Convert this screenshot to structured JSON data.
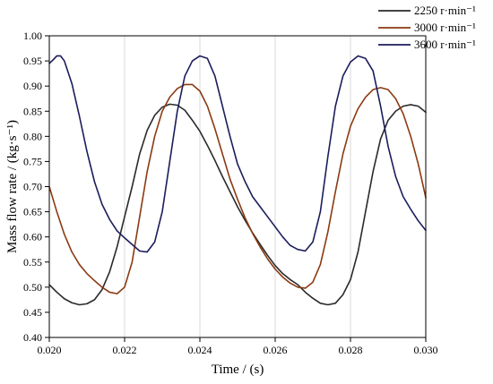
{
  "chart_data": {
    "type": "line",
    "title": "",
    "xlabel": "Time / (s)",
    "ylabel": "Mass flow rate / (kg·s⁻¹)",
    "xlim": [
      0.02,
      0.03
    ],
    "ylim": [
      0.4,
      1.0
    ],
    "xticks": [
      "0.020",
      "0.022",
      "0.024",
      "0.026",
      "0.028",
      "0.030"
    ],
    "yticks": [
      "0.40",
      "0.45",
      "0.50",
      "0.55",
      "0.60",
      "0.65",
      "0.70",
      "0.75",
      "0.80",
      "0.85",
      "0.90",
      "0.95",
      "1.00"
    ],
    "grid": "vertical lines at x ticks",
    "legend_position": "top-right, outside plot",
    "series": [
      {
        "name": "2250 r·min⁻¹",
        "color": "#2a2a2a",
        "points": [
          [
            0.02,
            0.505
          ],
          [
            0.0202,
            0.49
          ],
          [
            0.0204,
            0.477
          ],
          [
            0.0206,
            0.469
          ],
          [
            0.0208,
            0.465
          ],
          [
            0.021,
            0.467
          ],
          [
            0.0212,
            0.475
          ],
          [
            0.0214,
            0.495
          ],
          [
            0.0216,
            0.53
          ],
          [
            0.0218,
            0.58
          ],
          [
            0.022,
            0.64
          ],
          [
            0.0222,
            0.7
          ],
          [
            0.0224,
            0.765
          ],
          [
            0.0226,
            0.812
          ],
          [
            0.0228,
            0.842
          ],
          [
            0.023,
            0.858
          ],
          [
            0.0232,
            0.864
          ],
          [
            0.0234,
            0.862
          ],
          [
            0.0236,
            0.852
          ],
          [
            0.0238,
            0.832
          ],
          [
            0.024,
            0.81
          ],
          [
            0.0242,
            0.782
          ],
          [
            0.0244,
            0.752
          ],
          [
            0.0246,
            0.72
          ],
          [
            0.0248,
            0.69
          ],
          [
            0.025,
            0.66
          ],
          [
            0.0252,
            0.633
          ],
          [
            0.0254,
            0.608
          ],
          [
            0.0256,
            0.585
          ],
          [
            0.0258,
            0.563
          ],
          [
            0.026,
            0.543
          ],
          [
            0.0262,
            0.527
          ],
          [
            0.0264,
            0.515
          ],
          [
            0.0266,
            0.505
          ],
          [
            0.0268,
            0.49
          ],
          [
            0.027,
            0.478
          ],
          [
            0.0272,
            0.468
          ],
          [
            0.0274,
            0.465
          ],
          [
            0.0276,
            0.468
          ],
          [
            0.0278,
            0.485
          ],
          [
            0.028,
            0.515
          ],
          [
            0.0282,
            0.57
          ],
          [
            0.0284,
            0.65
          ],
          [
            0.0286,
            0.73
          ],
          [
            0.0288,
            0.795
          ],
          [
            0.029,
            0.832
          ],
          [
            0.0292,
            0.85
          ],
          [
            0.0294,
            0.86
          ],
          [
            0.0296,
            0.863
          ],
          [
            0.0298,
            0.86
          ],
          [
            0.03,
            0.848
          ]
        ]
      },
      {
        "name": "3000 r·min⁻¹",
        "color": "#8b3a12",
        "points": [
          [
            0.02,
            0.7
          ],
          [
            0.0202,
            0.65
          ],
          [
            0.0204,
            0.605
          ],
          [
            0.0206,
            0.57
          ],
          [
            0.0208,
            0.545
          ],
          [
            0.021,
            0.527
          ],
          [
            0.0212,
            0.513
          ],
          [
            0.0214,
            0.5
          ],
          [
            0.0216,
            0.49
          ],
          [
            0.0218,
            0.487
          ],
          [
            0.022,
            0.5
          ],
          [
            0.0222,
            0.55
          ],
          [
            0.0224,
            0.64
          ],
          [
            0.0226,
            0.73
          ],
          [
            0.0228,
            0.8
          ],
          [
            0.023,
            0.85
          ],
          [
            0.0232,
            0.878
          ],
          [
            0.0234,
            0.895
          ],
          [
            0.0236,
            0.903
          ],
          [
            0.0238,
            0.903
          ],
          [
            0.024,
            0.89
          ],
          [
            0.0242,
            0.86
          ],
          [
            0.0244,
            0.815
          ],
          [
            0.0246,
            0.765
          ],
          [
            0.0248,
            0.715
          ],
          [
            0.025,
            0.675
          ],
          [
            0.0252,
            0.638
          ],
          [
            0.0254,
            0.607
          ],
          [
            0.0256,
            0.58
          ],
          [
            0.0258,
            0.556
          ],
          [
            0.026,
            0.536
          ],
          [
            0.0262,
            0.52
          ],
          [
            0.0264,
            0.508
          ],
          [
            0.0266,
            0.5
          ],
          [
            0.0268,
            0.498
          ],
          [
            0.027,
            0.51
          ],
          [
            0.0272,
            0.545
          ],
          [
            0.0274,
            0.61
          ],
          [
            0.0276,
            0.69
          ],
          [
            0.0278,
            0.765
          ],
          [
            0.028,
            0.82
          ],
          [
            0.0282,
            0.855
          ],
          [
            0.0284,
            0.878
          ],
          [
            0.0286,
            0.893
          ],
          [
            0.0288,
            0.897
          ],
          [
            0.029,
            0.893
          ],
          [
            0.0292,
            0.875
          ],
          [
            0.0294,
            0.845
          ],
          [
            0.0296,
            0.8
          ],
          [
            0.0298,
            0.745
          ],
          [
            0.03,
            0.678
          ]
        ]
      },
      {
        "name": "3600 r·min⁻¹",
        "color": "#1c1c5c",
        "points": [
          [
            0.02,
            0.945
          ],
          [
            0.0201,
            0.952
          ],
          [
            0.0202,
            0.96
          ],
          [
            0.0203,
            0.96
          ],
          [
            0.0204,
            0.95
          ],
          [
            0.0206,
            0.905
          ],
          [
            0.0208,
            0.84
          ],
          [
            0.021,
            0.77
          ],
          [
            0.0212,
            0.71
          ],
          [
            0.0214,
            0.665
          ],
          [
            0.0216,
            0.635
          ],
          [
            0.0218,
            0.612
          ],
          [
            0.022,
            0.598
          ],
          [
            0.0222,
            0.585
          ],
          [
            0.0224,
            0.572
          ],
          [
            0.0226,
            0.57
          ],
          [
            0.0228,
            0.59
          ],
          [
            0.023,
            0.65
          ],
          [
            0.0232,
            0.75
          ],
          [
            0.0234,
            0.85
          ],
          [
            0.0236,
            0.92
          ],
          [
            0.0238,
            0.95
          ],
          [
            0.024,
            0.96
          ],
          [
            0.0242,
            0.955
          ],
          [
            0.0244,
            0.92
          ],
          [
            0.0246,
            0.86
          ],
          [
            0.0248,
            0.8
          ],
          [
            0.025,
            0.745
          ],
          [
            0.0252,
            0.71
          ],
          [
            0.0254,
            0.68
          ],
          [
            0.0256,
            0.66
          ],
          [
            0.0258,
            0.64
          ],
          [
            0.026,
            0.62
          ],
          [
            0.0262,
            0.6
          ],
          [
            0.0264,
            0.583
          ],
          [
            0.0266,
            0.575
          ],
          [
            0.0268,
            0.572
          ],
          [
            0.027,
            0.59
          ],
          [
            0.0272,
            0.65
          ],
          [
            0.0274,
            0.76
          ],
          [
            0.0276,
            0.86
          ],
          [
            0.0278,
            0.92
          ],
          [
            0.028,
            0.948
          ],
          [
            0.0282,
            0.96
          ],
          [
            0.0284,
            0.955
          ],
          [
            0.0286,
            0.93
          ],
          [
            0.0288,
            0.86
          ],
          [
            0.029,
            0.78
          ],
          [
            0.0292,
            0.72
          ],
          [
            0.0294,
            0.68
          ],
          [
            0.0296,
            0.655
          ],
          [
            0.0298,
            0.632
          ],
          [
            0.03,
            0.613
          ]
        ]
      }
    ]
  }
}
